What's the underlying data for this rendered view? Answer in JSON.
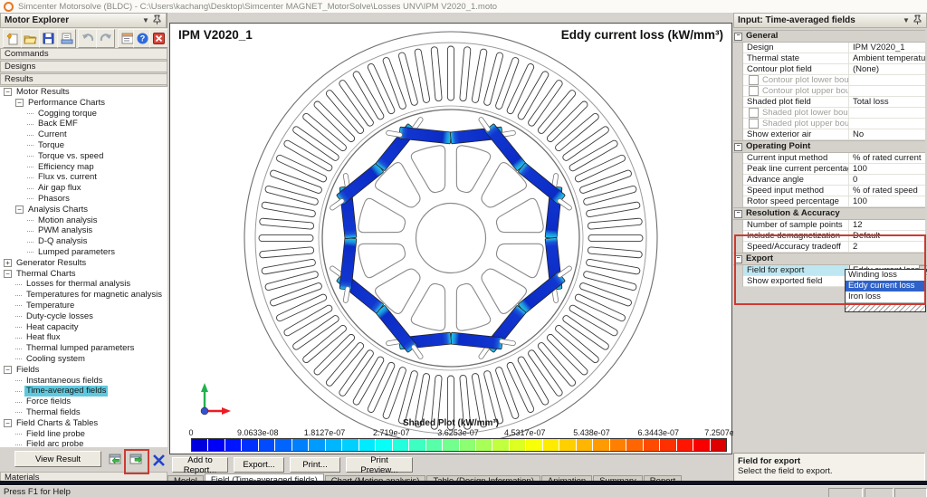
{
  "window": {
    "title": "Simcenter Motorsolve (BLDC) - C:\\Users\\kachang\\Desktop\\Simcenter MAGNET_MotorSolve\\Losses UNV\\IPM V2020_1.moto"
  },
  "explorer": {
    "title": "Motor Explorer",
    "toolbar_icons": [
      "new-file",
      "open",
      "save",
      "export-page",
      "undo",
      "redo",
      "properties",
      "help",
      "close"
    ],
    "sections": {
      "commands": "Commands",
      "designs": "Designs",
      "results": "Results",
      "materials": "Materials"
    },
    "view_result_label": "View Result",
    "tree": [
      {
        "label": "Motor Results",
        "level": 0,
        "glyph": "minus"
      },
      {
        "label": "Performance Charts",
        "level": 1,
        "glyph": "minus"
      },
      {
        "label": "Cogging torque",
        "level": 2,
        "glyph": "leaf"
      },
      {
        "label": "Back EMF",
        "level": 2,
        "glyph": "leaf"
      },
      {
        "label": "Current",
        "level": 2,
        "glyph": "leaf"
      },
      {
        "label": "Torque",
        "level": 2,
        "glyph": "leaf"
      },
      {
        "label": "Torque vs. speed",
        "level": 2,
        "glyph": "leaf"
      },
      {
        "label": "Efficiency map",
        "level": 2,
        "glyph": "leaf"
      },
      {
        "label": "Flux vs. current",
        "level": 2,
        "glyph": "leaf"
      },
      {
        "label": "Air gap flux",
        "level": 2,
        "glyph": "leaf"
      },
      {
        "label": "Phasors",
        "level": 2,
        "glyph": "leaf"
      },
      {
        "label": "Analysis Charts",
        "level": 1,
        "glyph": "minus"
      },
      {
        "label": "Motion analysis",
        "level": 2,
        "glyph": "leaf"
      },
      {
        "label": "PWM analysis",
        "level": 2,
        "glyph": "leaf"
      },
      {
        "label": "D-Q analysis",
        "level": 2,
        "glyph": "leaf"
      },
      {
        "label": "Lumped parameters",
        "level": 2,
        "glyph": "leaf"
      },
      {
        "label": "Generator Results",
        "level": 0,
        "glyph": "plus"
      },
      {
        "label": "Thermal Charts",
        "level": 0,
        "glyph": "minus"
      },
      {
        "label": "Losses for thermal analysis",
        "level": 1,
        "glyph": "leaf"
      },
      {
        "label": "Temperatures for magnetic analysis",
        "level": 1,
        "glyph": "leaf"
      },
      {
        "label": "Temperature",
        "level": 1,
        "glyph": "leaf"
      },
      {
        "label": "Duty-cycle losses",
        "level": 1,
        "glyph": "leaf"
      },
      {
        "label": "Heat capacity",
        "level": 1,
        "glyph": "leaf"
      },
      {
        "label": "Heat flux",
        "level": 1,
        "glyph": "leaf"
      },
      {
        "label": "Thermal lumped parameters",
        "level": 1,
        "glyph": "leaf"
      },
      {
        "label": "Cooling system",
        "level": 1,
        "glyph": "leaf"
      },
      {
        "label": "Fields",
        "level": 0,
        "glyph": "minus"
      },
      {
        "label": "Instantaneous fields",
        "level": 1,
        "glyph": "leaf"
      },
      {
        "label": "Time-averaged fields",
        "level": 1,
        "glyph": "leaf",
        "selected": true
      },
      {
        "label": "Force fields",
        "level": 1,
        "glyph": "leaf"
      },
      {
        "label": "Thermal fields",
        "level": 1,
        "glyph": "leaf"
      },
      {
        "label": "Field Charts & Tables",
        "level": 0,
        "glyph": "minus"
      },
      {
        "label": "Field line probe",
        "level": 1,
        "glyph": "leaf"
      },
      {
        "label": "Field arc probe",
        "level": 1,
        "glyph": "leaf"
      },
      {
        "label": "Field point probes",
        "level": 1,
        "glyph": "leaf"
      }
    ]
  },
  "canvas": {
    "model_name": "IPM V2020_1",
    "plot_title": "Eddy current loss (kW/mm³)",
    "colorbar": {
      "title": "Shaded Plot (kW/mm³)",
      "ticks": [
        "0",
        "9.0633e-08",
        "1.8127e-07",
        "2.719e-07",
        "3.6253e-07",
        "4.5317e-07",
        "5.438e-07",
        "6.3443e-07",
        "7.2507e-07"
      ],
      "segments": 32
    }
  },
  "actions": [
    "Add to Report...",
    "Export...",
    "Print...",
    "Print Preview..."
  ],
  "tabs": {
    "labels": [
      "Model",
      "Field (Time-averaged fields)",
      "Chart (Motion analysis)",
      "Table (Design Information)",
      "Animation",
      "Summary",
      "Report"
    ],
    "active": 1
  },
  "inspector": {
    "title": "Input: Time-averaged fields",
    "groups": [
      {
        "name": "General",
        "rows": [
          {
            "label": "Design",
            "value": "IPM V2020_1",
            "type": "text"
          },
          {
            "label": "Thermal state",
            "value": "Ambient temperature",
            "type": "text"
          },
          {
            "label": "Contour plot field",
            "value": "(None)",
            "type": "text"
          },
          {
            "label": "Contour plot lower bound",
            "value": "",
            "type": "checkbox"
          },
          {
            "label": "Contour plot upper bound",
            "value": "",
            "type": "checkbox"
          },
          {
            "label": "Shaded plot field",
            "value": "Total loss",
            "type": "text"
          },
          {
            "label": "Shaded plot lower bound",
            "value": "",
            "type": "checkbox"
          },
          {
            "label": "Shaded plot upper bound",
            "value": "",
            "type": "checkbox"
          },
          {
            "label": "Show exterior air",
            "value": "No",
            "type": "text"
          }
        ]
      },
      {
        "name": "Operating Point",
        "rows": [
          {
            "label": "Current input method",
            "value": "% of rated current",
            "type": "text"
          },
          {
            "label": "Peak line current percentage",
            "value": "100",
            "type": "text"
          },
          {
            "label": "Advance angle",
            "value": "0",
            "type": "text"
          },
          {
            "label": "Speed input method",
            "value": "% of rated speed",
            "type": "text"
          },
          {
            "label": "Rotor speed percentage",
            "value": "100",
            "type": "text"
          }
        ]
      },
      {
        "name": "Resolution & Accuracy",
        "rows": [
          {
            "label": "Number of sample points",
            "value": "12",
            "type": "text"
          },
          {
            "label": "Include demagnetization",
            "value": "Default",
            "type": "text"
          },
          {
            "label": "Speed/Accuracy tradeoff",
            "value": "2",
            "type": "text"
          }
        ]
      },
      {
        "name": "Export",
        "rows": [
          {
            "label": "Field for export",
            "value": "Eddy current loss",
            "type": "combo"
          },
          {
            "label": "Show exported field",
            "value": "",
            "type": "text"
          }
        ]
      }
    ],
    "dropdown": {
      "items": [
        "Winding loss",
        "Eddy current loss",
        "Iron loss"
      ],
      "selected": "Eddy current loss"
    },
    "description": {
      "title": "Field for export",
      "text": "Select the field to export."
    }
  },
  "statusbar": {
    "help": "Press F1 for Help"
  },
  "colors": {
    "tree_selection": "#5ec9de",
    "row_selection": "#bfe7f2",
    "dropdown_selection": "#2e62c9",
    "annotation_red": "#cc3b32",
    "magnet_blue": "#1136d0",
    "magnet_cyan": "#2cc8ea"
  }
}
